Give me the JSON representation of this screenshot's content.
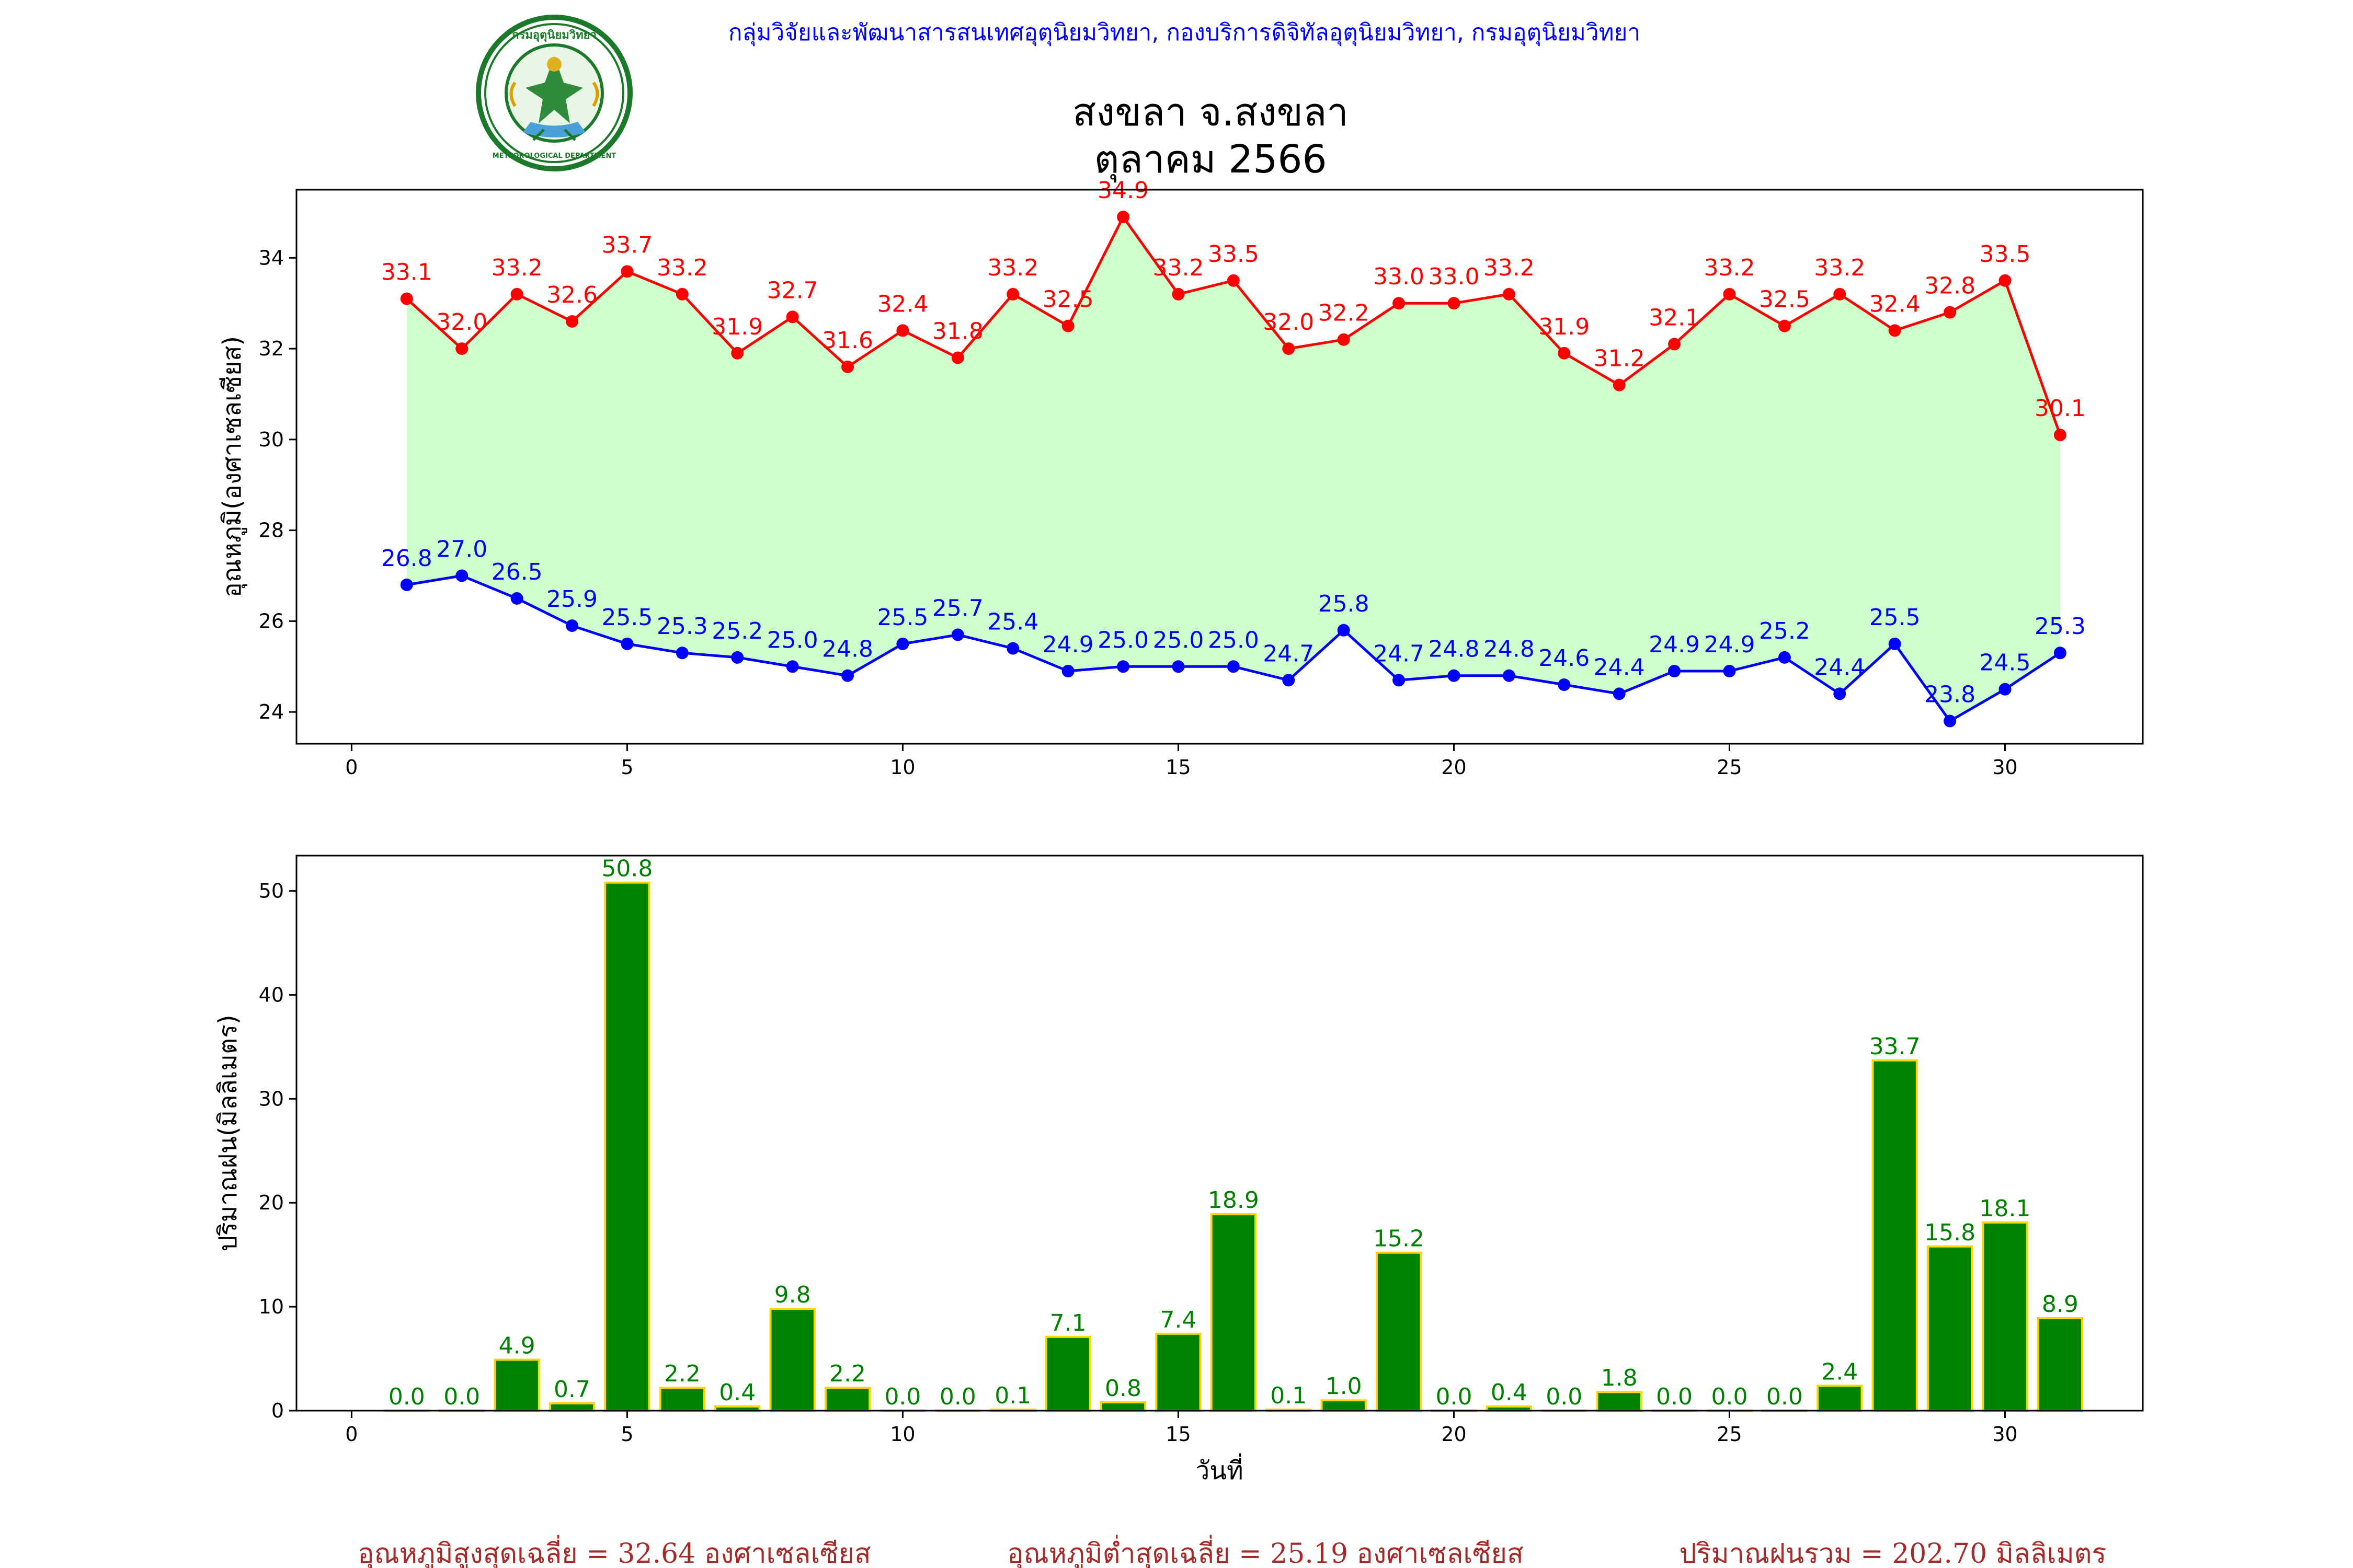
{
  "header": {
    "department_line": "กลุ่มวิจัยและพัฒนาสารสนเทศอุตุนิยมวิทยา, กองบริการดิจิทัลอุตุนิยมวิทยา, กรมอุตุนิยมวิทยา",
    "logo_top_text": "กรมอุตุนิยมวิทยา",
    "logo_bottom_text": "METEOROLOGICAL DEPARTMENT"
  },
  "title": {
    "line1": "สงขลา จ.สงขลา",
    "line2": "ตุลาคม 2566"
  },
  "footer": {
    "avg_max": "อุณหภูมิสูงสุดเฉลี่ย = 32.64 องศาเซลเซียส",
    "avg_min": "อุณหภูมิต่ำสุดเฉลี่ย = 25.19 องศาเซลเซียส",
    "total_rain": "ปริมาณฝนรวม = 202.70 มิลลิเมตร"
  },
  "colors": {
    "max_line": "#ff0000",
    "min_line": "#0000ff",
    "fill": "#ccffcc",
    "bar_fill": "#008000",
    "bar_edge": "#ffd700",
    "bar_label": "#008000",
    "header_text": "#0000ff",
    "footer_text": "#a52a2a"
  },
  "chart_data": [
    {
      "type": "line",
      "xlabel": "",
      "ylabel": "อุณหภูมิ(องศาเซลเซียส)",
      "xlim": [
        -1,
        32.5
      ],
      "ylim": [
        23.3,
        35.5
      ],
      "xticks": [
        0,
        5,
        10,
        15,
        20,
        25,
        30
      ],
      "yticks": [
        24,
        26,
        28,
        30,
        32,
        34
      ],
      "grid": false,
      "fill_between": true,
      "x": [
        1,
        2,
        3,
        4,
        5,
        6,
        7,
        8,
        9,
        10,
        11,
        12,
        13,
        14,
        15,
        16,
        17,
        18,
        19,
        20,
        21,
        22,
        23,
        24,
        25,
        26,
        27,
        28,
        29,
        30,
        31
      ],
      "series": [
        {
          "key": "max",
          "values": [
            33.1,
            32.0,
            33.2,
            32.6,
            33.7,
            33.2,
            31.9,
            32.7,
            31.6,
            32.4,
            31.8,
            33.2,
            32.5,
            34.9,
            33.2,
            33.5,
            32.0,
            32.2,
            33.0,
            33.0,
            33.2,
            31.9,
            31.2,
            32.1,
            33.2,
            32.5,
            33.2,
            32.4,
            32.8,
            33.5,
            30.1
          ]
        },
        {
          "key": "min",
          "values": [
            26.8,
            27.0,
            26.5,
            25.9,
            25.5,
            25.3,
            25.2,
            25.0,
            24.8,
            25.5,
            25.7,
            25.4,
            24.9,
            25.0,
            25.0,
            25.0,
            24.7,
            25.8,
            24.7,
            24.8,
            24.8,
            24.6,
            24.4,
            24.9,
            24.9,
            25.2,
            24.4,
            25.5,
            23.8,
            24.5,
            25.3
          ]
        }
      ]
    },
    {
      "type": "bar",
      "xlabel": "วันที่",
      "ylabel": "ปริมาณฝน(มิลลิเมตร)",
      "xlim": [
        -1,
        32.5
      ],
      "ylim": [
        0,
        53.4
      ],
      "xticks": [
        0,
        5,
        10,
        15,
        20,
        25,
        30
      ],
      "yticks": [
        0,
        10,
        20,
        30,
        40,
        50
      ],
      "grid": false,
      "x": [
        1,
        2,
        3,
        4,
        5,
        6,
        7,
        8,
        9,
        10,
        11,
        12,
        13,
        14,
        15,
        16,
        17,
        18,
        19,
        20,
        21,
        22,
        23,
        24,
        25,
        26,
        27,
        28,
        29,
        30,
        31
      ],
      "values": [
        0.0,
        0.0,
        4.9,
        0.7,
        50.8,
        2.2,
        0.4,
        9.8,
        2.2,
        0.0,
        0.0,
        0.1,
        7.1,
        0.8,
        7.4,
        18.9,
        0.1,
        1.0,
        15.2,
        0.0,
        0.4,
        0.0,
        1.8,
        0.0,
        0.0,
        0.0,
        2.4,
        33.7,
        15.8,
        18.1,
        8.9
      ]
    }
  ]
}
